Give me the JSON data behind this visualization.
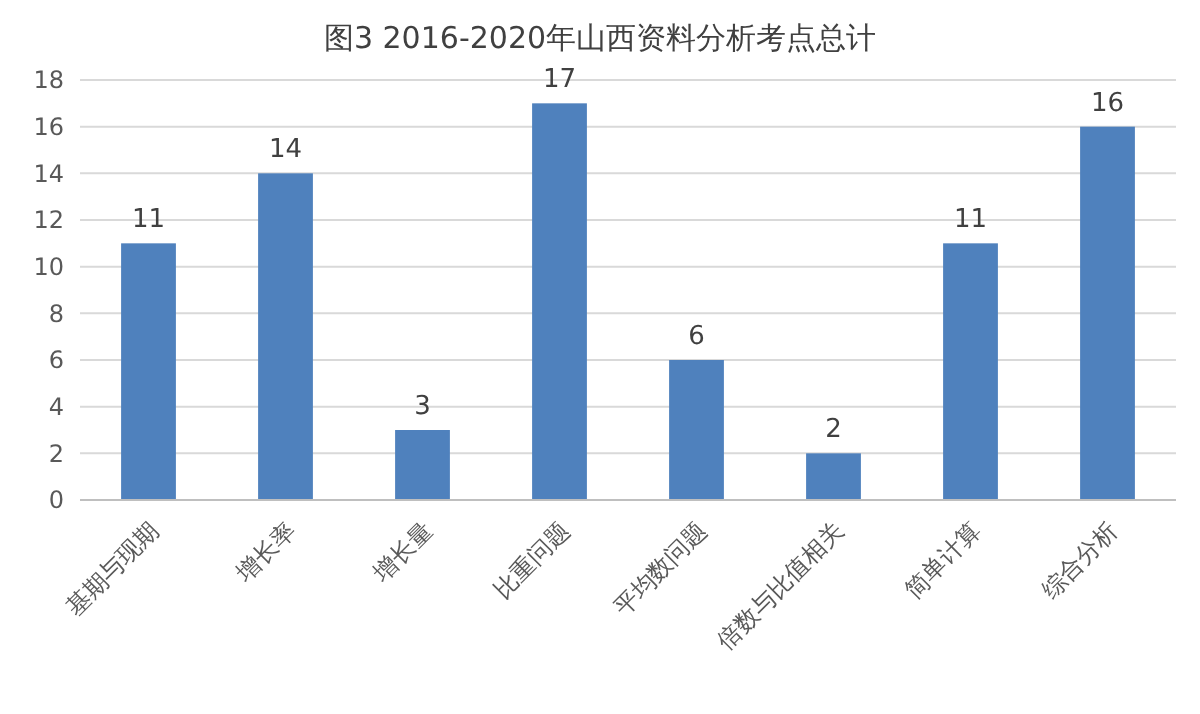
{
  "chart_data": {
    "type": "bar",
    "title": "图3 2016-2020年山西资料分析考点总计",
    "categories": [
      "基期与现期",
      "增长率",
      "增长量",
      "比重问题",
      "平均数问题",
      "倍数与比值相关",
      "简单计算",
      "综合分析"
    ],
    "values": [
      11,
      14,
      3,
      17,
      6,
      2,
      11,
      16
    ],
    "color": "#4f81bd",
    "ylim": [
      0,
      18
    ],
    "yticks": [
      0,
      2,
      4,
      6,
      8,
      10,
      12,
      14,
      16,
      18
    ],
    "grid": "y",
    "data_labels": true
  }
}
